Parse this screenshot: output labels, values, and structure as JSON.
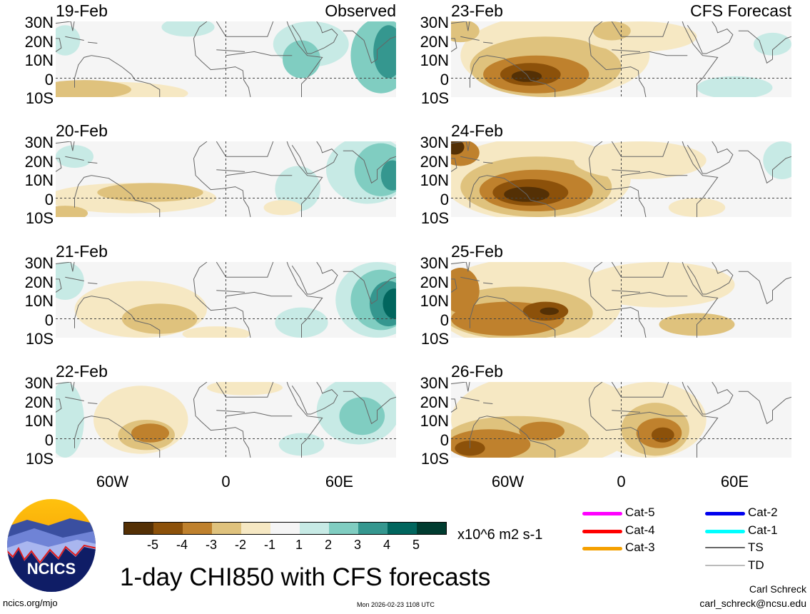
{
  "panels": [
    {
      "date": "19-Feb",
      "tag": "Observed"
    },
    {
      "date": "20-Feb",
      "tag": ""
    },
    {
      "date": "21-Feb",
      "tag": ""
    },
    {
      "date": "22-Feb",
      "tag": ""
    },
    {
      "date": "23-Feb",
      "tag": "CFS Forecast"
    },
    {
      "date": "24-Feb",
      "tag": ""
    },
    {
      "date": "25-Feb",
      "tag": ""
    },
    {
      "date": "26-Feb",
      "tag": ""
    }
  ],
  "lat_labels": [
    "30N",
    "20N",
    "10N",
    "0",
    "10S"
  ],
  "lon_labels": [
    "60W",
    "0",
    "60E"
  ],
  "colorbar": {
    "colors": [
      "#543005",
      "#8c510a",
      "#bf812d",
      "#dfc27d",
      "#f6e8c3",
      "#f5f5f5",
      "#c7eae5",
      "#80cdc1",
      "#35978f",
      "#01665e",
      "#003c30"
    ],
    "ticks": [
      "-5",
      "-4",
      "-3",
      "-2",
      "-1",
      "1",
      "2",
      "3",
      "4",
      "5"
    ],
    "units": "x10^6 m2 s-1"
  },
  "legend": [
    {
      "label": "Cat-5",
      "color": "#ff00ff"
    },
    {
      "label": "Cat-4",
      "color": "#ff0000"
    },
    {
      "label": "Cat-3",
      "color": "#f5a000"
    },
    {
      "label": "Cat-2",
      "color": "#0000ee"
    },
    {
      "label": "Cat-1",
      "color": "#00ffff"
    },
    {
      "label": "TS",
      "color": "#666666"
    },
    {
      "label": "TD",
      "color": "#bbbbbb"
    }
  ],
  "title": "1-day CHI850 with CFS forecasts",
  "logo_text": "NCICS",
  "footer": {
    "url": "ncics.org/mjo",
    "timestamp": "Mon 2026-02-23 1108 UTC",
    "author": "Carl Schreck",
    "email": "carl_schreck@ncsu.edu"
  }
}
